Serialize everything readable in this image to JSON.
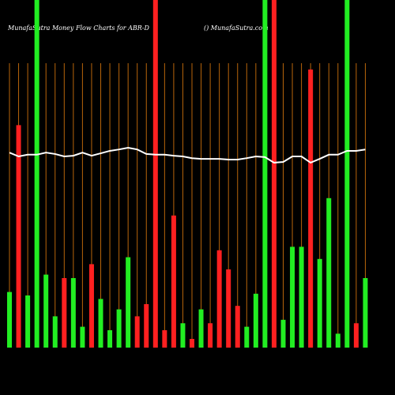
{
  "chart_data": {
    "type": "bar",
    "title": "MunafaSutra  Money Flow  Charts for ABR-D",
    "subtitle": "() MunafaSutra.com",
    "ylim": [
      0,
      100
    ],
    "grid": true,
    "grid_color": "#b8650a",
    "bars": {
      "values": [
        16,
        64,
        15,
        100,
        21,
        9,
        20,
        20,
        6,
        24,
        14,
        5,
        11,
        26,
        9,
        12.5,
        100,
        5,
        38,
        7,
        2.5,
        11,
        7,
        28,
        22.5,
        12,
        6,
        15.5,
        100,
        100,
        8,
        29,
        29,
        80,
        25.5,
        43,
        4,
        100,
        7,
        20
      ],
      "colors": [
        "#22ee22",
        "#ff2020",
        "#22ee22",
        "#22ee22",
        "#22ee22",
        "#22ee22",
        "#ff2020",
        "#22ee22",
        "#22ee22",
        "#ff2020",
        "#22ee22",
        "#22ee22",
        "#22ee22",
        "#22ee22",
        "#ff2020",
        "#ff2020",
        "#ff2020",
        "#ff2020",
        "#ff2020",
        "#22ee22",
        "#ff2020",
        "#22ee22",
        "#ff2020",
        "#ff2020",
        "#ff2020",
        "#ff2020",
        "#22ee22",
        "#22ee22",
        "#22ee22",
        "#ff2020",
        "#22ee22",
        "#22ee22",
        "#22ee22",
        "#ff2020",
        "#22ee22",
        "#22ee22",
        "#22ee22",
        "#22ee22",
        "#ff2020",
        "#22ee22"
      ]
    },
    "line": {
      "color": "#ffffff",
      "values": [
        56.1,
        55,
        55.5,
        55.5,
        56.1,
        55.7,
        55,
        55.2,
        56.1,
        55.2,
        55.9,
        56.6,
        57.0,
        57.5,
        57.0,
        55.7,
        55.5,
        55.5,
        55.2,
        55,
        54.5,
        54.3,
        54.3,
        54.3,
        54.1,
        54.1,
        54.5,
        55,
        54.8,
        53.2,
        53.4,
        55,
        55,
        53.2,
        54.3,
        55.5,
        55.5,
        56.6,
        56.6,
        57.0
      ]
    }
  }
}
